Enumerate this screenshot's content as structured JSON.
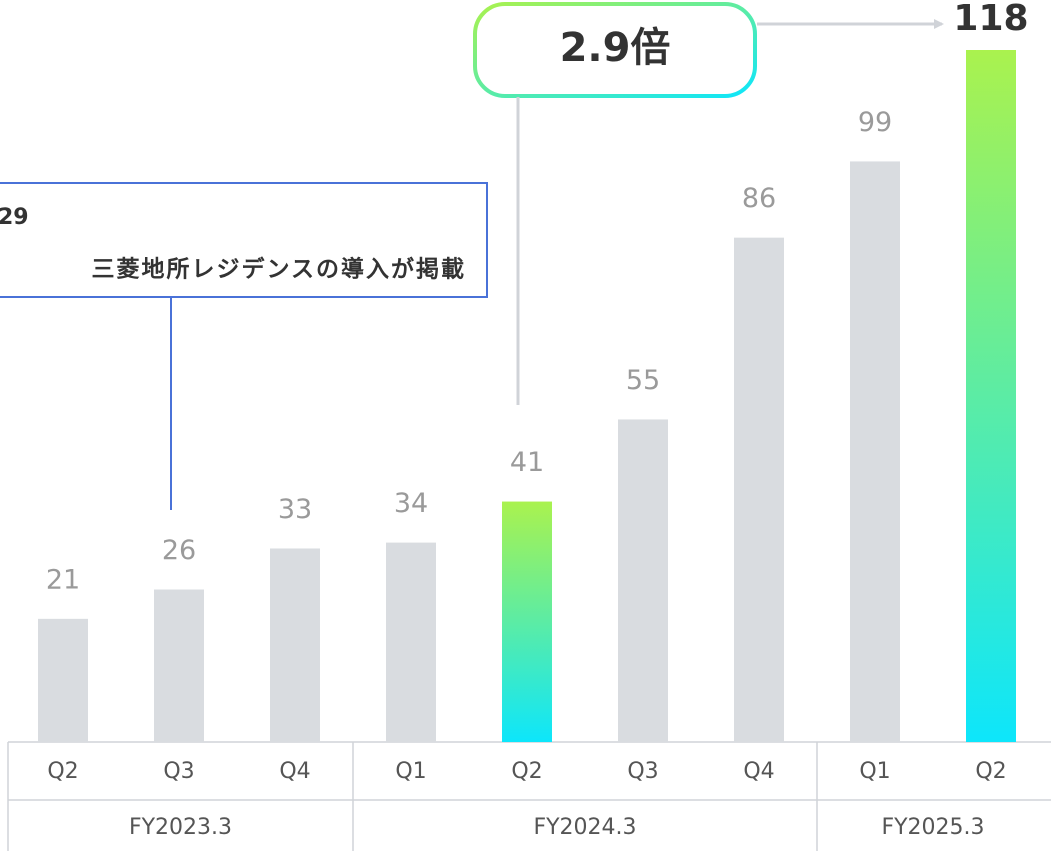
{
  "chart_data": {
    "type": "bar",
    "categories": [
      "Q2",
      "Q3",
      "Q4",
      "Q1",
      "Q2",
      "Q3",
      "Q4",
      "Q1",
      "Q2"
    ],
    "values": [
      21,
      26,
      33,
      34,
      41,
      55,
      86,
      99,
      118
    ],
    "groups": [
      {
        "label": "FY2023.3",
        "count": 3
      },
      {
        "label": "FY2024.3",
        "count": 4
      },
      {
        "label": "FY2025.3",
        "count": 2
      }
    ],
    "color": "#d9dce0",
    "highlighted": [
      4,
      8
    ],
    "highlight_gradient": [
      "#aaf24e",
      "#0de6fb"
    ],
    "annotation": "2.9倍",
    "callout": [
      "29",
      "三菱地所レジデンスの導入が掲載"
    ]
  }
}
